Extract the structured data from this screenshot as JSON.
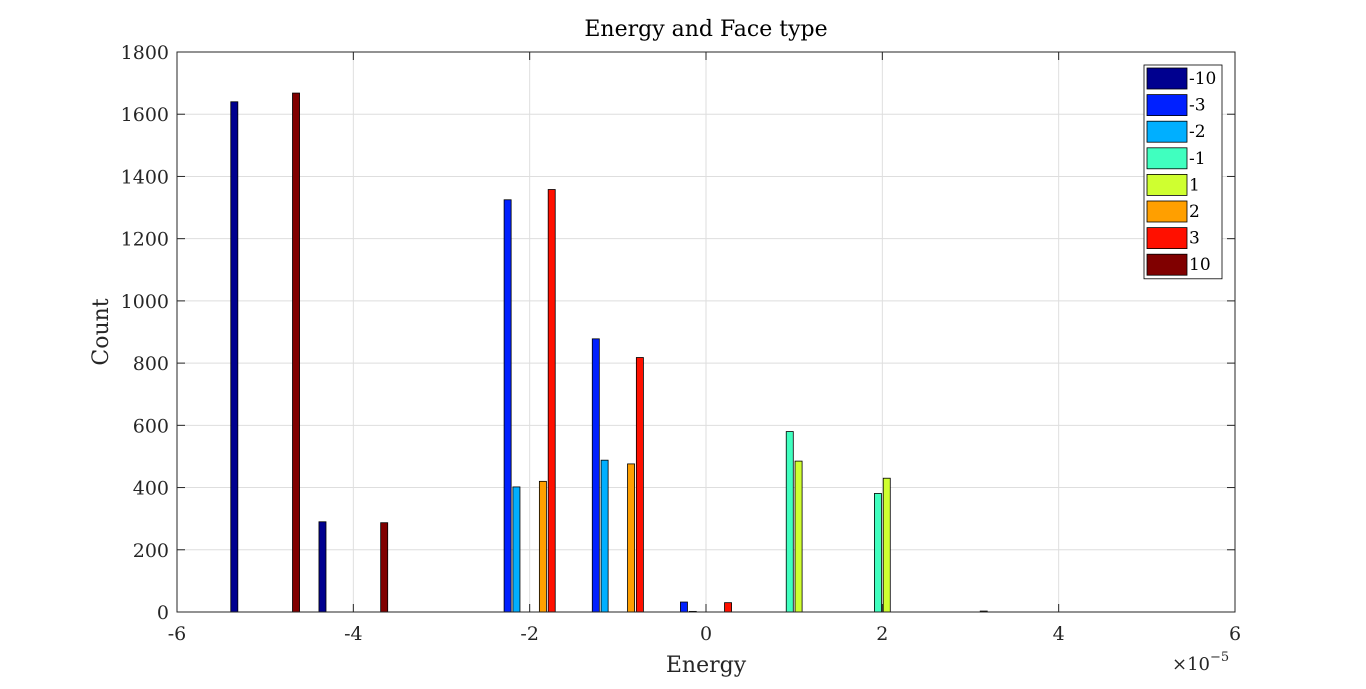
{
  "chart_data": {
    "type": "bar",
    "title": "Energy and Face type",
    "xlabel": "Energy",
    "ylabel": "Count",
    "x_multiplier": "×10",
    "x_multiplier_exponent": "−5",
    "xlim": [
      -6,
      6
    ],
    "ylim": [
      0,
      1800
    ],
    "x_ticks": [
      -6,
      -4,
      -2,
      0,
      2,
      4,
      6
    ],
    "x_tick_labels": [
      "-6",
      "-4",
      "-2",
      "0",
      "2",
      "4",
      "6"
    ],
    "y_ticks": [
      0,
      200,
      400,
      600,
      800,
      1000,
      1200,
      1400,
      1600,
      1800
    ],
    "y_tick_labels": [
      "0",
      "200",
      "400",
      "600",
      "800",
      "1000",
      "1200",
      "1400",
      "1600",
      "1800"
    ],
    "grid": true,
    "legend_position": "top-right",
    "bin_centers": [
      -5,
      -4,
      -3,
      -2,
      -1,
      0,
      1,
      2,
      3,
      4,
      5
    ],
    "series": [
      {
        "name": "-10",
        "color": "#00008F",
        "values": [
          1640,
          290,
          0,
          0,
          0,
          0,
          0,
          0,
          0,
          0,
          0
        ]
      },
      {
        "name": "-3",
        "color": "#0020FF",
        "values": [
          0,
          0,
          0,
          1325,
          878,
          32,
          0,
          0,
          0,
          0,
          0
        ]
      },
      {
        "name": "-2",
        "color": "#00AFFF",
        "values": [
          0,
          0,
          0,
          402,
          488,
          2,
          0,
          0,
          0,
          0,
          0
        ]
      },
      {
        "name": "-1",
        "color": "#40FFBF",
        "values": [
          0,
          0,
          0,
          0,
          0,
          0,
          580,
          381,
          0,
          0,
          0
        ]
      },
      {
        "name": "1",
        "color": "#CFFF30",
        "values": [
          0,
          0,
          0,
          0,
          0,
          0,
          485,
          430,
          0,
          0,
          0
        ]
      },
      {
        "name": "2",
        "color": "#FF9F00",
        "values": [
          0,
          0,
          0,
          420,
          476,
          0,
          0,
          0,
          3,
          0,
          0
        ]
      },
      {
        "name": "3",
        "color": "#FF1000",
        "values": [
          0,
          0,
          0,
          1358,
          818,
          30,
          0,
          0,
          0,
          0,
          0
        ]
      },
      {
        "name": "10",
        "color": "#800000",
        "values": [
          1668,
          287,
          0,
          0,
          0,
          0,
          0,
          0,
          0,
          0,
          0
        ]
      }
    ]
  }
}
